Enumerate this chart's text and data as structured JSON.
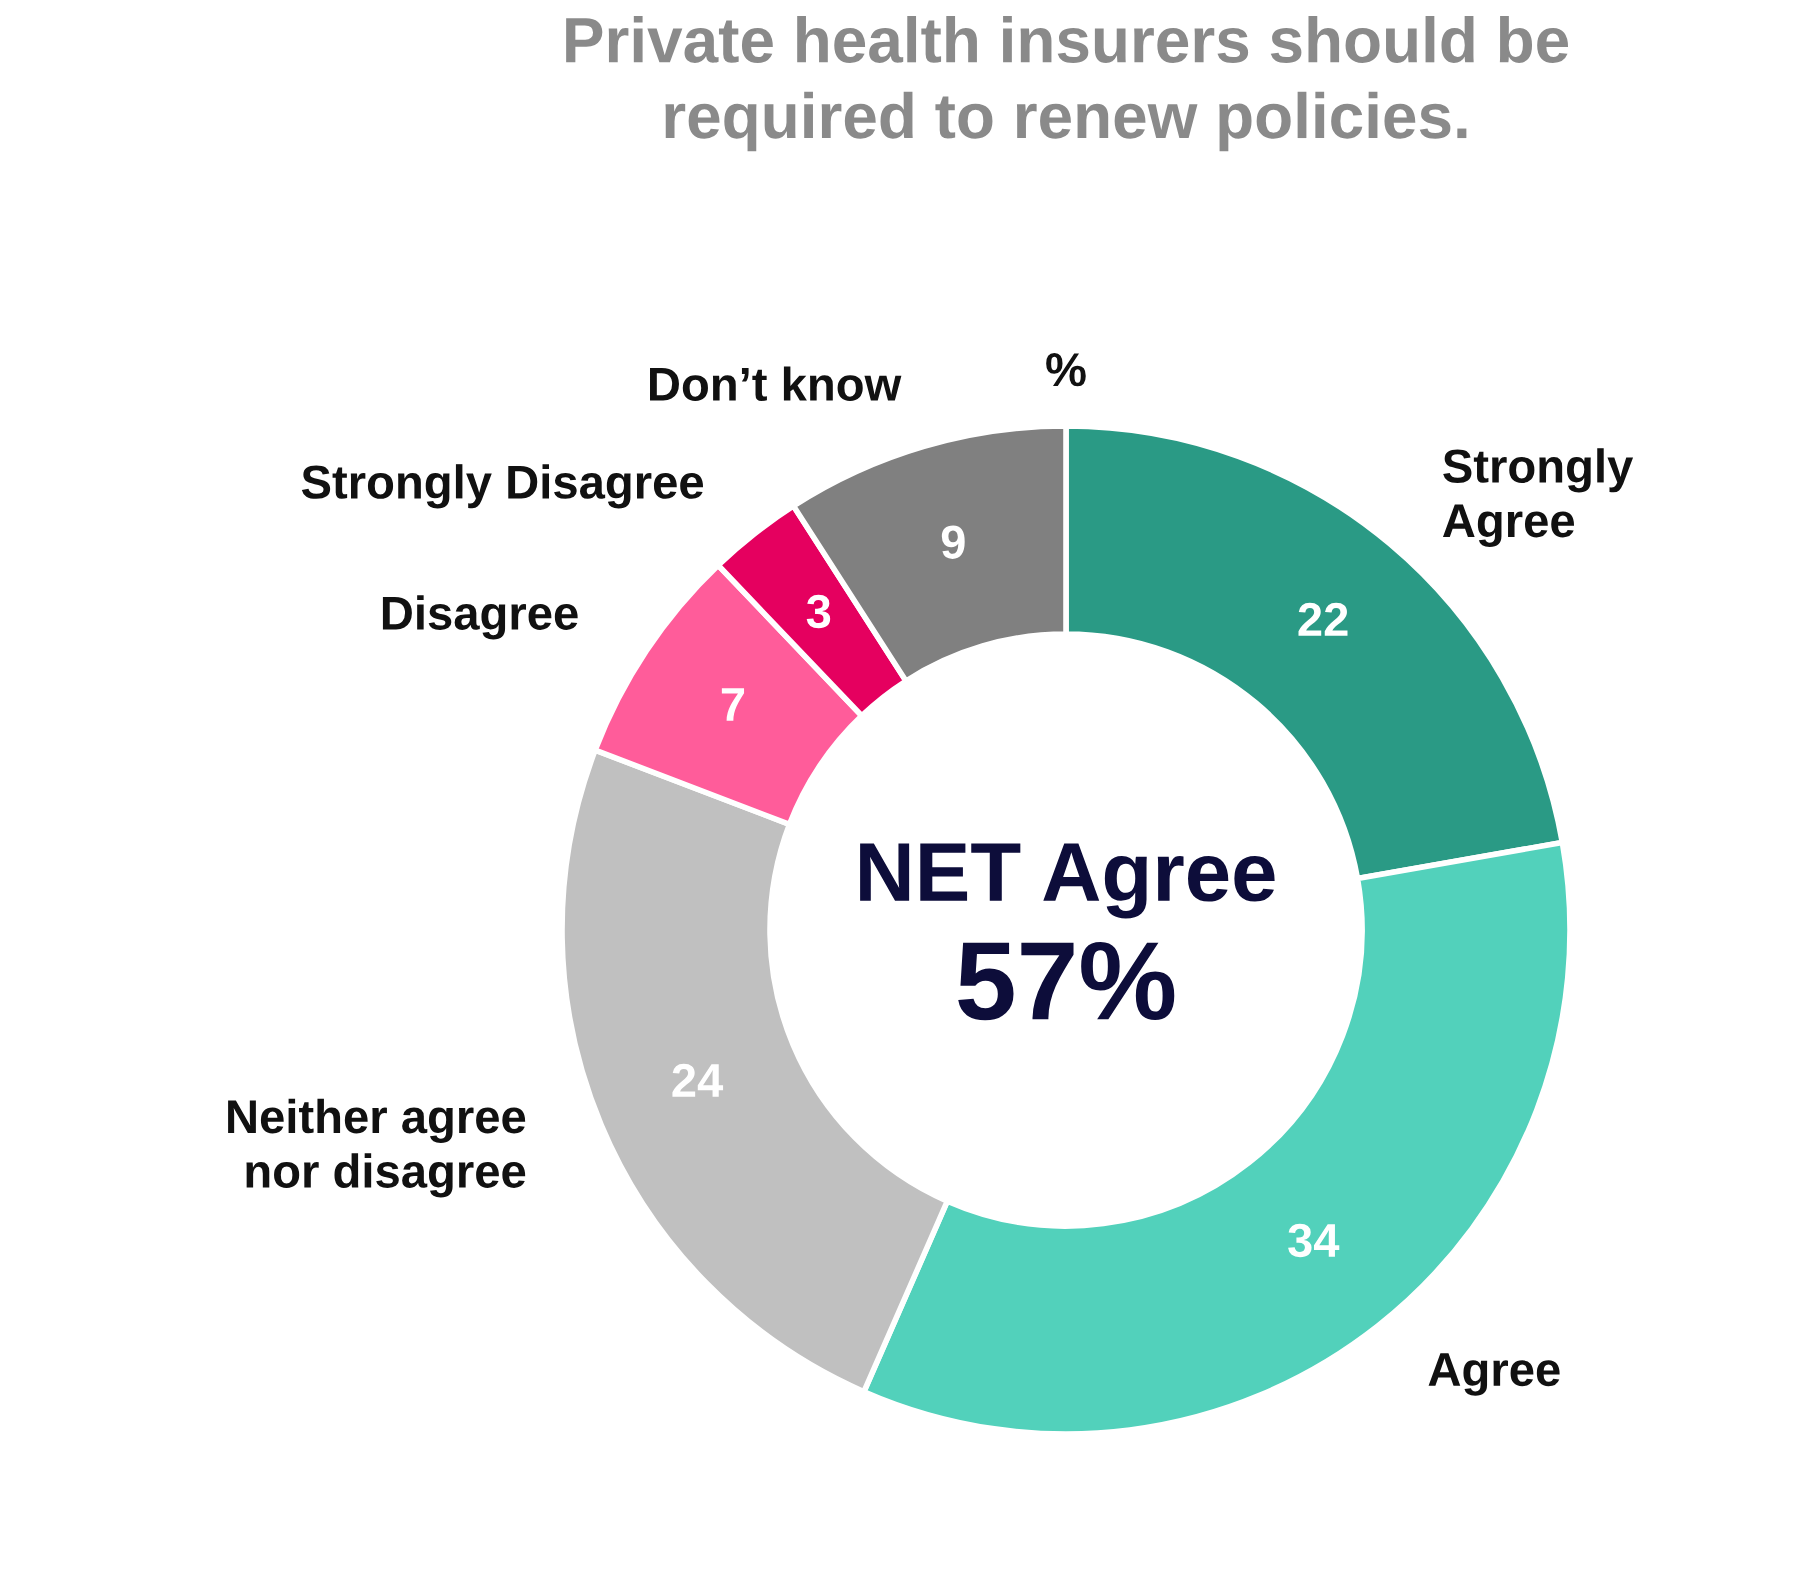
{
  "chart_data": {
    "type": "donut",
    "title": "Private health insurers should be\nrequired to renew policies.",
    "categories": [
      "Strongly\nAgree",
      "Agree",
      "Neither agree\nnor disagree",
      "Disagree",
      "Strongly Disagree",
      "Don’t know"
    ],
    "values": [
      22,
      34,
      24,
      7,
      3,
      9
    ],
    "colors": [
      "#2a9a85",
      "#52d1bb",
      "#c0c0c0",
      "#ff5c9a",
      "#e5005f",
      "#808080"
    ],
    "data_labels": true,
    "annotations": [
      "%",
      "NET Agree",
      "57%"
    ]
  }
}
